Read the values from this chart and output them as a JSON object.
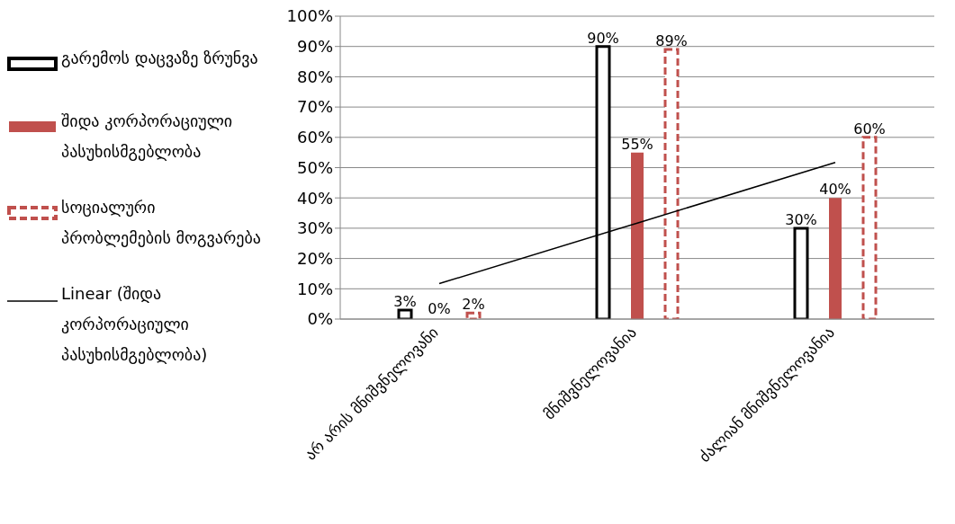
{
  "chart_data": {
    "type": "bar",
    "categories": [
      "არ არის მნიშვნელოვანი",
      "მნიშვნელოვანია",
      "ძალიან მნიშვნელოვანია"
    ],
    "series": [
      {
        "name": "გარემოს დაცვაზე ზრუნვა",
        "color": "#000000",
        "line_style": "solid",
        "values": [
          3,
          90,
          30
        ],
        "value_labels": [
          "3%",
          "90%",
          "30%"
        ]
      },
      {
        "name": "შიდა კორპორაციული პასუხისმგებლობა",
        "color": "#c0504d",
        "values": [
          0,
          55,
          40
        ],
        "value_labels": [
          "0%",
          "55%",
          "40%"
        ]
      },
      {
        "name": "სოციალური პრობლემების მოგვარება",
        "color": "#c0504d",
        "line_style": "dashed",
        "values": [
          2,
          89,
          60
        ],
        "value_labels": [
          "2%",
          "89%",
          "60%"
        ]
      },
      {
        "name": "Linear (შიდა კორპორაციული პასუხისმგებლობა)",
        "type": "line",
        "color": "#000000",
        "values": [
          11.7,
          31.7,
          51.7
        ]
      }
    ],
    "ylim": [
      0,
      100
    ],
    "yticks": [
      {
        "value": 0,
        "label": "0%"
      },
      {
        "value": 10,
        "label": "10%"
      },
      {
        "value": 20,
        "label": "20%"
      },
      {
        "value": 30,
        "label": "30%"
      },
      {
        "value": 40,
        "label": "40%"
      },
      {
        "value": 50,
        "label": "50%"
      },
      {
        "value": 60,
        "label": "60%"
      },
      {
        "value": 70,
        "label": "70%"
      },
      {
        "value": 80,
        "label": "80%"
      },
      {
        "value": 90,
        "label": "90%"
      },
      {
        "value": 100,
        "label": "100%"
      }
    ],
    "grid": "y",
    "legend": "left"
  }
}
